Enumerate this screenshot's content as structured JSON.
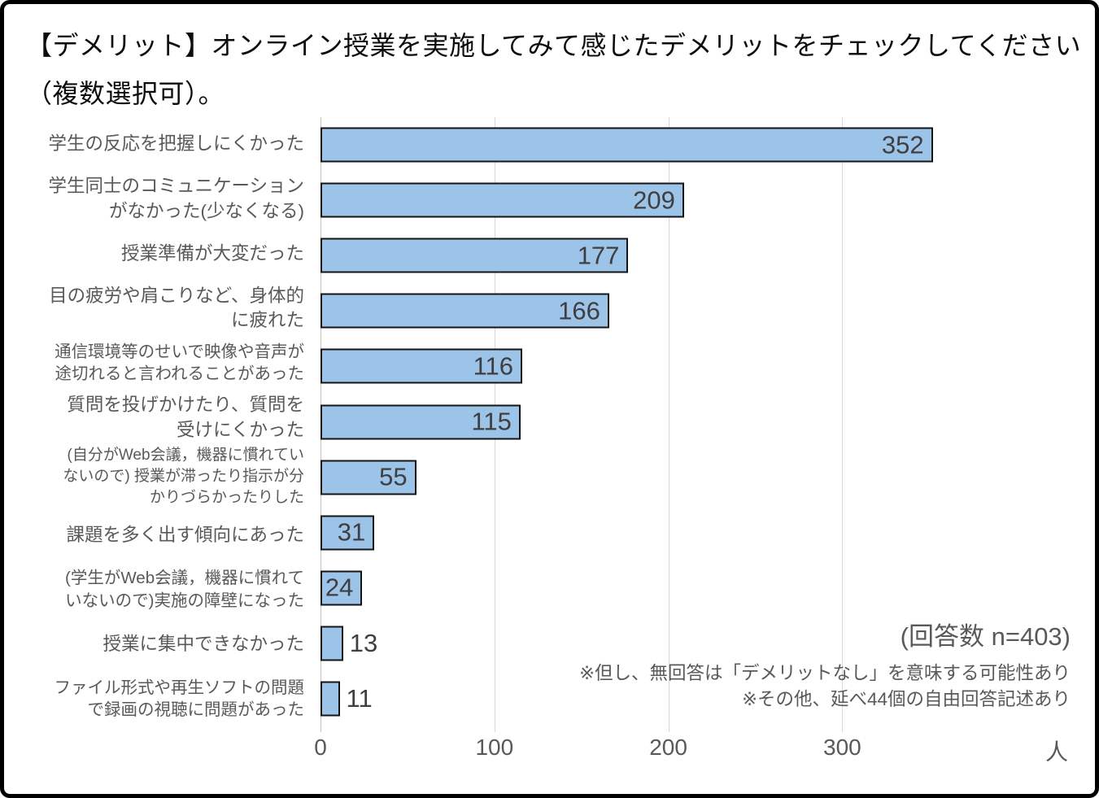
{
  "title": "【デメリット】オンライン授業を実施してみて感じたデメリットをチェックしてください（複数選択可）。",
  "chart_data": {
    "type": "bar",
    "orientation": "horizontal",
    "title": "【デメリット】オンライン授業を実施してみて感じたデメリットをチェックしてください（複数選択可）。",
    "categories": [
      "学生の反応を把握しにくかった",
      "学生同士のコミュニケーションがなかった(少なくなる)",
      "授業準備が大変だった",
      "目の疲労や肩こりなど、身体的に疲れた",
      "通信環境等のせいで映像や音声が途切れると言われることがあった",
      "質問を投げかけたり、質問を受けにくかった",
      "(自分がWeb会議，機器に慣れていないので) 授業が滞ったり指示が分かりづらかったりした",
      "課題を多く出す傾向にあった",
      "(学生がWeb会議，機器に慣れていないので)実施の障壁になった",
      "授業に集中できなかった",
      "ファイル形式や再生ソフトの問題で録画の視聴に問題があった"
    ],
    "category_lines": [
      [
        "学生の反応を把握しにくかった"
      ],
      [
        "学生同士のコミュニケーション",
        "がなかった(少なくなる)"
      ],
      [
        "授業準備が大変だった"
      ],
      [
        "目の疲労や肩こりなど、身体的",
        "に疲れた"
      ],
      [
        "通信環境等のせいで映像や音声が",
        "途切れると言われることがあった"
      ],
      [
        "質問を投げかけたり、質問を",
        "受けにくかった"
      ],
      [
        "(自分がWeb会議，機器に慣れてい",
        "ないので) 授業が滞ったり指示が分",
        "かりづらかったりした"
      ],
      [
        "課題を多く出す傾向にあった"
      ],
      [
        "(学生がWeb会議，機器に慣れて",
        "いないので)実施の障壁になった"
      ],
      [
        "授業に集中できなかった"
      ],
      [
        "ファイル形式や再生ソフトの問題",
        "で録画の視聴に問題があった"
      ]
    ],
    "values": [
      352,
      209,
      177,
      166,
      116,
      115,
      55,
      31,
      24,
      13,
      11
    ],
    "x_ticks": [
      0,
      100,
      200,
      300
    ],
    "x_unit": "人",
    "xlim": [
      0,
      442
    ],
    "grid": "vertical",
    "legend": "none",
    "annotations": [
      "(回答数 n=403)",
      "※但し、無回答は「デメリットなし」を意味する可能性あり",
      "※その他、延べ44個の自由回答記述あり"
    ],
    "colors": {
      "bar_fill": "#9cc3e8",
      "bar_border": "#141414",
      "gridline": "#d9d9d9",
      "value_label": "#3f3f3f",
      "category_label": "#595959",
      "tick_label": "#595959",
      "annotation": "#595959",
      "title": "#0d0d0d"
    }
  }
}
